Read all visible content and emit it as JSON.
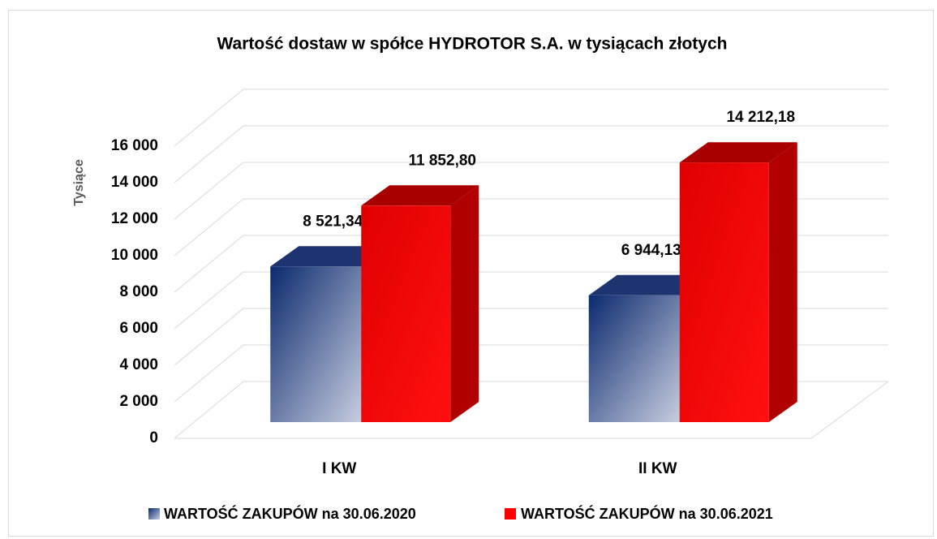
{
  "chart_data": {
    "type": "bar3d",
    "title": "Wartość dostaw w spółce HYDROTOR S.A. w tysiącach złotych",
    "ylabel": "Tysiące",
    "categories": [
      "I KW",
      "II KW"
    ],
    "series": [
      {
        "name": "WARTOŚĆ ZAKUPÓW na 30.06.2020",
        "color": "#1f3a7a",
        "values": [
          8521.34,
          6944.13
        ],
        "value_labels": [
          "8 521,34",
          "6 944,13"
        ]
      },
      {
        "name": "WARTOŚĆ ZAKUPÓW na 30.06.2021",
        "color": "#ff0000",
        "values": [
          11852.8,
          14212.18
        ],
        "value_labels": [
          "11 852,80",
          "14 212,18"
        ]
      }
    ],
    "ylim": [
      0,
      16000
    ],
    "yticks": [
      0,
      {
        "value": 2000,
        "label": "2 000"
      },
      {
        "value": 4000,
        "label": "4 000"
      },
      {
        "value": 6000,
        "label": "6 000"
      },
      {
        "value": 8000,
        "label": "8 000"
      },
      {
        "value": 10000,
        "label": "10 000"
      },
      {
        "value": 12000,
        "label": "12 000"
      },
      {
        "value": 14000,
        "label": "14 000"
      },
      {
        "value": 16000,
        "label": "16 000"
      }
    ],
    "grid": true,
    "legend": "bottom"
  }
}
